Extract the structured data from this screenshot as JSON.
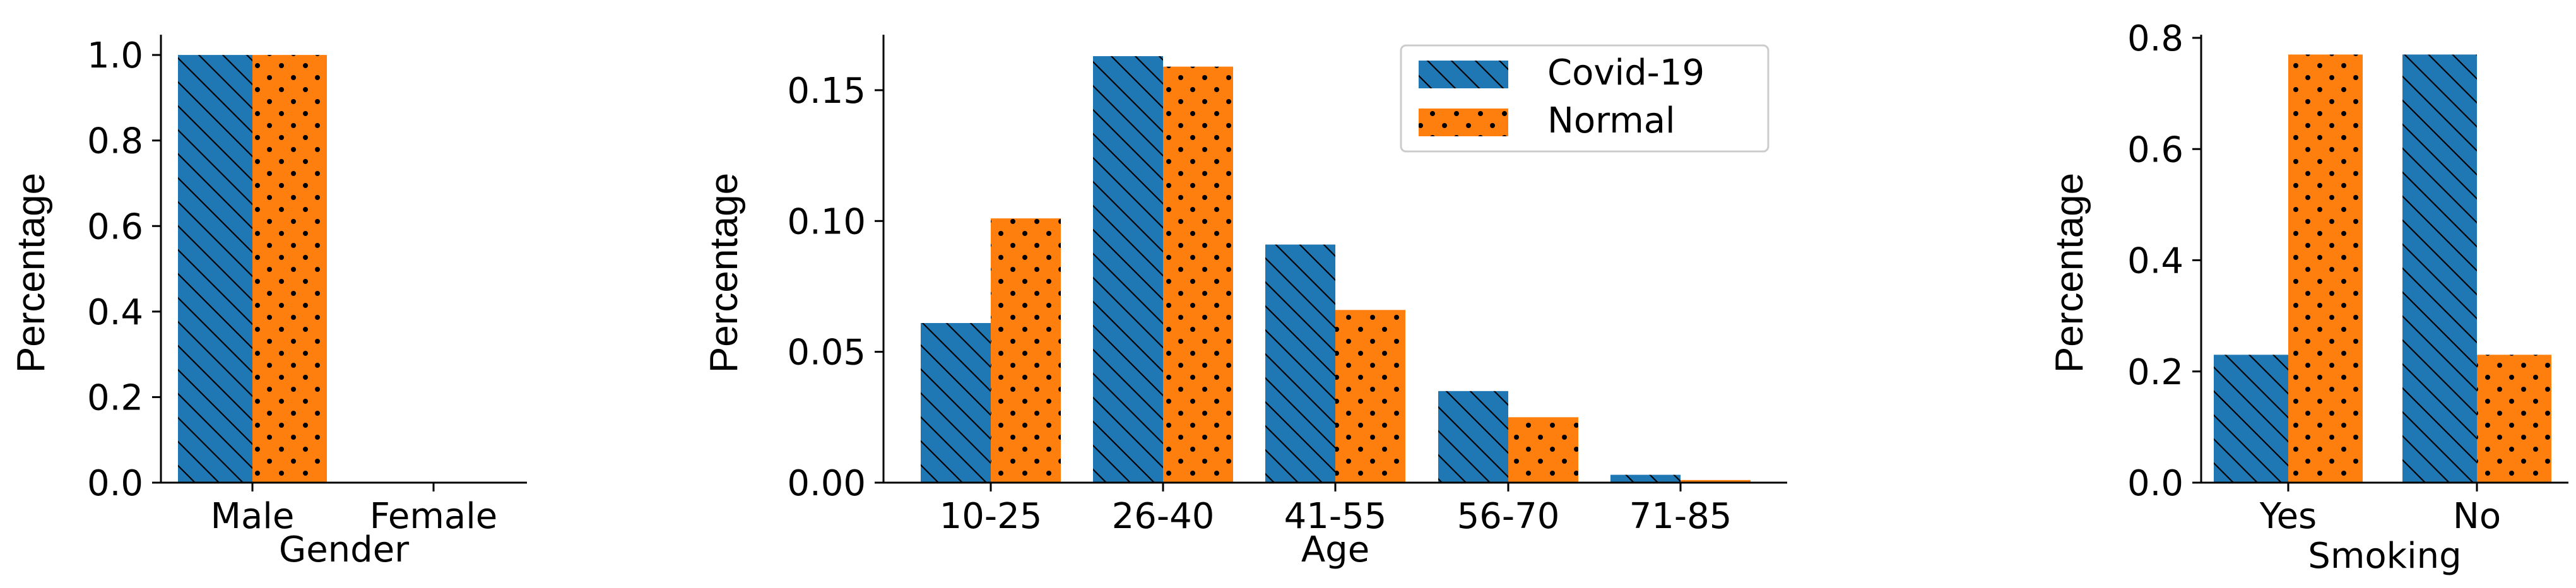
{
  "colors": {
    "covid": "#1f77b4",
    "normal": "#ff7f0e"
  },
  "legend": {
    "entries": [
      "Covid-19",
      "Normal"
    ],
    "location": "upper-right of Age panel"
  },
  "chart_data": [
    {
      "type": "bar",
      "categories": [
        "Male",
        "Female"
      ],
      "series": [
        {
          "name": "Covid-19",
          "values": [
            1.0,
            0.0
          ],
          "hatch": "diagonal"
        },
        {
          "name": "Normal",
          "values": [
            1.0,
            0.0
          ],
          "hatch": "dots"
        }
      ],
      "xlabel": "Gender",
      "ylabel": "Percentage",
      "ylim": [
        0,
        1.04
      ],
      "yticks": [
        0.0,
        0.2,
        0.4,
        0.6,
        0.8,
        1.0
      ],
      "ytick_labels": [
        "0.0",
        "0.2",
        "0.4",
        "0.6",
        "0.8",
        "1.0"
      ]
    },
    {
      "type": "bar",
      "categories": [
        "10-25",
        "26-40",
        "41-55",
        "56-70",
        "71-85"
      ],
      "series": [
        {
          "name": "Covid-19",
          "values": [
            0.061,
            0.163,
            0.091,
            0.035,
            0.003
          ],
          "hatch": "diagonal"
        },
        {
          "name": "Normal",
          "values": [
            0.101,
            0.159,
            0.066,
            0.025,
            0.001
          ],
          "hatch": "dots"
        }
      ],
      "xlabel": "Age",
      "ylabel": "Percentage",
      "ylim": [
        0,
        0.17
      ],
      "yticks": [
        0.0,
        0.05,
        0.1,
        0.15
      ],
      "ytick_labels": [
        "0.00",
        "0.05",
        "0.10",
        "0.15"
      ]
    },
    {
      "type": "bar",
      "categories": [
        "Yes",
        "No"
      ],
      "series": [
        {
          "name": "Covid-19",
          "values": [
            0.23,
            0.77
          ],
          "hatch": "diagonal"
        },
        {
          "name": "Normal",
          "values": [
            0.77,
            0.23
          ],
          "hatch": "dots"
        }
      ],
      "xlabel": "Smoking",
      "ylabel": "Percentage",
      "ylim": [
        0,
        0.8
      ],
      "yticks": [
        0.0,
        0.2,
        0.4,
        0.6,
        0.8
      ],
      "ytick_labels": [
        "0.0",
        "0.2",
        "0.4",
        "0.6",
        "0.8"
      ]
    }
  ]
}
